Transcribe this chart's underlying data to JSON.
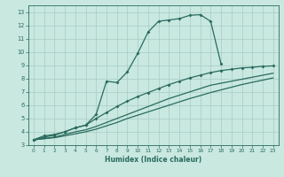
{
  "title": "",
  "xlabel": "Humidex (Indice chaleur)",
  "xlim": [
    -0.5,
    23.5
  ],
  "ylim": [
    3,
    13.5
  ],
  "xticks": [
    0,
    1,
    2,
    3,
    4,
    5,
    6,
    7,
    8,
    9,
    10,
    11,
    12,
    13,
    14,
    15,
    16,
    17,
    18,
    19,
    20,
    21,
    22,
    23
  ],
  "yticks": [
    3,
    4,
    5,
    6,
    7,
    8,
    9,
    10,
    11,
    12,
    13
  ],
  "bg_color": "#c8e8e0",
  "grid_color": "#a8ccc4",
  "line_color": "#2a6b5e",
  "line1_x": [
    0,
    1,
    2,
    3,
    4,
    5,
    6,
    7,
    8,
    9,
    10,
    11,
    12,
    13,
    14,
    15,
    16,
    17,
    18
  ],
  "line1_y": [
    3.4,
    3.7,
    3.8,
    4.0,
    4.3,
    4.5,
    5.3,
    7.8,
    7.7,
    8.5,
    9.9,
    11.5,
    12.3,
    12.4,
    12.5,
    12.75,
    12.8,
    12.3,
    9.1
  ],
  "line2_x": [
    0,
    1,
    2,
    3,
    4,
    5,
    6,
    7,
    8,
    9,
    10,
    11,
    12,
    13,
    14,
    15,
    16,
    17,
    18,
    19,
    20,
    21,
    22,
    23
  ],
  "line2_y": [
    3.4,
    3.6,
    3.75,
    4.0,
    4.3,
    4.5,
    5.0,
    5.45,
    5.9,
    6.3,
    6.65,
    6.95,
    7.25,
    7.55,
    7.8,
    8.05,
    8.25,
    8.45,
    8.6,
    8.7,
    8.8,
    8.85,
    8.92,
    8.95
  ],
  "line3_x": [
    0,
    1,
    2,
    3,
    4,
    5,
    6,
    7,
    8,
    9,
    10,
    11,
    12,
    13,
    14,
    15,
    16,
    17,
    18,
    19,
    20,
    21,
    22,
    23
  ],
  "line3_y": [
    3.4,
    3.5,
    3.6,
    3.8,
    4.0,
    4.15,
    4.4,
    4.7,
    5.0,
    5.3,
    5.6,
    5.9,
    6.2,
    6.5,
    6.75,
    7.0,
    7.25,
    7.5,
    7.65,
    7.8,
    7.95,
    8.1,
    8.25,
    8.4
  ],
  "line4_x": [
    0,
    1,
    2,
    3,
    4,
    5,
    6,
    7,
    8,
    9,
    10,
    11,
    12,
    13,
    14,
    15,
    16,
    17,
    18,
    19,
    20,
    21,
    22,
    23
  ],
  "line4_y": [
    3.4,
    3.48,
    3.56,
    3.7,
    3.85,
    4.0,
    4.2,
    4.45,
    4.7,
    5.0,
    5.25,
    5.5,
    5.75,
    6.0,
    6.25,
    6.5,
    6.72,
    6.95,
    7.15,
    7.35,
    7.55,
    7.72,
    7.88,
    8.05
  ]
}
